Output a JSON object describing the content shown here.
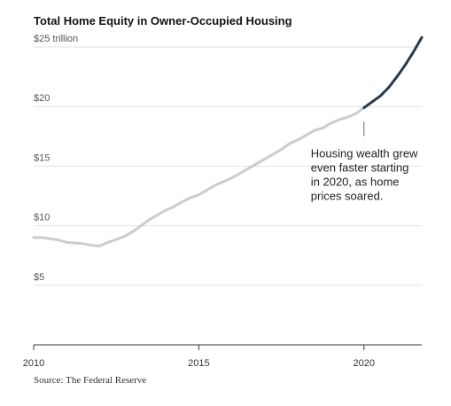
{
  "chart_data": {
    "type": "line",
    "title": "Total Home Equity in Owner-Occupied Housing",
    "ylabel": "",
    "xlabel": "",
    "y_unit_label": "trillion",
    "ylim": [
      0,
      25
    ],
    "xlim": [
      2010,
      2021.75
    ],
    "grid": "horizontal",
    "y_ticks": [
      {
        "value": 25,
        "label": "$25 trillion"
      },
      {
        "value": 20,
        "label": "$20"
      },
      {
        "value": 15,
        "label": "$15"
      },
      {
        "value": 10,
        "label": "$10"
      },
      {
        "value": 5,
        "label": "$5"
      }
    ],
    "x_ticks": [
      {
        "value": 2010,
        "label": "2010"
      },
      {
        "value": 2015,
        "label": "2015"
      },
      {
        "value": 2020,
        "label": "2020"
      }
    ],
    "series": [
      {
        "color": "#cccccc",
        "x": [
          2010,
          2010.25,
          2010.5,
          2010.75,
          2011,
          2011.25,
          2011.5,
          2011.75,
          2012,
          2012.25,
          2012.5,
          2012.75,
          2013,
          2013.25,
          2013.5,
          2013.75,
          2014,
          2014.25,
          2014.5,
          2014.75,
          2015,
          2015.25,
          2015.5,
          2015.75,
          2016,
          2016.25,
          2016.5,
          2016.75,
          2017,
          2017.25,
          2017.5,
          2017.75,
          2018,
          2018.25,
          2018.5,
          2018.75,
          2019,
          2019.25,
          2019.5,
          2019.75,
          2020
        ],
        "values": [
          9.0,
          9.0,
          8.9,
          8.8,
          8.6,
          8.55,
          8.5,
          8.35,
          8.3,
          8.6,
          8.85,
          9.1,
          9.5,
          10.0,
          10.5,
          10.9,
          11.3,
          11.6,
          12.0,
          12.35,
          12.6,
          13.0,
          13.4,
          13.7,
          14.0,
          14.4,
          14.8,
          15.2,
          15.6,
          16.0,
          16.4,
          16.9,
          17.2,
          17.6,
          18.0,
          18.2,
          18.6,
          18.9,
          19.1,
          19.4,
          19.9
        ]
      },
      {
        "color": "#2b3a4a",
        "x": [
          2020,
          2020.25,
          2020.5,
          2020.75,
          2021,
          2021.25,
          2021.5,
          2021.75
        ],
        "values": [
          19.9,
          20.4,
          20.9,
          21.6,
          22.5,
          23.5,
          24.6,
          25.8
        ]
      }
    ],
    "annotations": [
      {
        "x": 2020,
        "y": 19.9,
        "lines": [
          "Housing wealth grew",
          "even faster starting",
          "in 2020, as home",
          "prices soared."
        ]
      }
    ]
  },
  "source": "Source: The Federal Reserve"
}
